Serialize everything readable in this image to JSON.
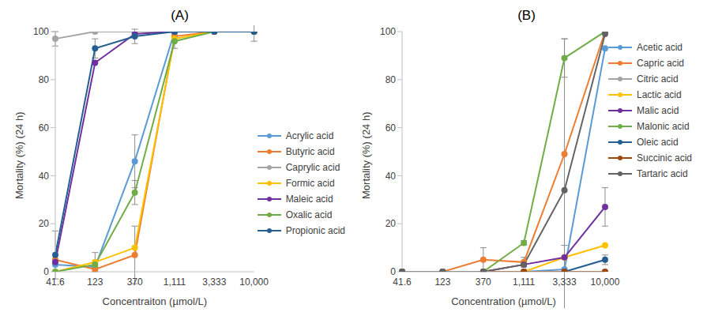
{
  "chart_data": [
    {
      "type": "line",
      "title": "(A)",
      "x_label": "Concentraiton (µmol/L)",
      "y_label": "Mortality (%) (24 h)",
      "categories": [
        "41.6",
        "123",
        "370",
        "1,111",
        "3,333",
        "10,000"
      ],
      "ylim": [
        0,
        100
      ],
      "yticks": [
        0,
        20,
        40,
        60,
        80,
        100
      ],
      "legend": "right",
      "marker": "circle",
      "series": [
        {
          "name": "Acrylic acid",
          "color": "#5B9BD5",
          "values": [
            3,
            2,
            46,
            100,
            100,
            100
          ],
          "errors": [
            null,
            null,
            11,
            null,
            null,
            null
          ]
        },
        {
          "name": "Butyric acid",
          "color": "#ED7D31",
          "values": [
            5,
            1,
            7,
            98,
            100,
            100
          ],
          "errors": [
            null,
            null,
            12,
            null,
            null,
            null
          ]
        },
        {
          "name": "Caprylic acid",
          "color": "#A5A5A5",
          "values": [
            97,
            100,
            100,
            100,
            100,
            100
          ],
          "errors": [
            3,
            null,
            null,
            null,
            null,
            null
          ]
        },
        {
          "name": "Formic acid",
          "color": "#FFC000",
          "values": [
            0,
            4,
            10,
            97,
            100,
            100
          ],
          "errors": [
            null,
            4,
            null,
            null,
            null,
            null
          ]
        },
        {
          "name": "Maleic acid",
          "color": "#7030A0",
          "values": [
            4,
            87,
            99,
            100,
            100,
            100
          ],
          "errors": [
            null,
            null,
            null,
            null,
            null,
            null
          ]
        },
        {
          "name": "Oxalic acid",
          "color": "#70AD47",
          "values": [
            0,
            3,
            33,
            96,
            100,
            100
          ],
          "errors": [
            null,
            null,
            5,
            3,
            null,
            null
          ]
        },
        {
          "name": "Propionic acid",
          "color": "#255E91",
          "values": [
            7,
            93,
            98,
            100,
            100,
            100
          ],
          "errors": [
            10,
            4,
            3,
            null,
            null,
            4
          ]
        }
      ]
    },
    {
      "type": "line",
      "title": "(B)",
      "x_label": "Concentration (µmol/L)",
      "y_label": "Mortality (%) (24 h)",
      "categories": [
        "41.6",
        "123",
        "370",
        "1,111",
        "3,333",
        "10,000"
      ],
      "ylim": [
        0,
        100
      ],
      "yticks": [
        0,
        20,
        40,
        60,
        80,
        100
      ],
      "legend": "upper right",
      "marker": "circle",
      "series": [
        {
          "name": "Acetic acid",
          "color": "#5B9BD5",
          "values": [
            0,
            0,
            0,
            0,
            1,
            93
          ],
          "errors": [
            null,
            null,
            null,
            null,
            null,
            null
          ]
        },
        {
          "name": "Capric acid",
          "color": "#ED7D31",
          "values": [
            0,
            0,
            5,
            4,
            49,
            100
          ],
          "errors": [
            null,
            null,
            5,
            2,
            null,
            null
          ]
        },
        {
          "name": "Citric acid",
          "color": "#A5A5A5",
          "values": [
            0,
            0,
            0,
            0,
            0,
            0
          ],
          "errors": [
            null,
            null,
            null,
            null,
            null,
            null
          ]
        },
        {
          "name": "Lactic acid",
          "color": "#FFC000",
          "values": [
            0,
            0,
            0,
            0,
            6,
            11
          ],
          "errors": [
            null,
            null,
            null,
            null,
            null,
            null
          ]
        },
        {
          "name": "Malic acid",
          "color": "#7030A0",
          "values": [
            0,
            0,
            0,
            3,
            6,
            27
          ],
          "errors": [
            null,
            null,
            null,
            null,
            5,
            8
          ]
        },
        {
          "name": "Malonic acid",
          "color": "#70AD47",
          "values": [
            0,
            0,
            0,
            12,
            89,
            100
          ],
          "errors": [
            null,
            null,
            null,
            1,
            8,
            null
          ]
        },
        {
          "name": "Oleic acid",
          "color": "#255E91",
          "values": [
            0,
            0,
            0,
            0,
            0,
            5
          ],
          "errors": [
            null,
            null,
            null,
            null,
            null,
            2
          ]
        },
        {
          "name": "Succinic acid",
          "color": "#9E480E",
          "values": [
            0,
            0,
            0,
            0,
            0,
            0
          ],
          "errors": [
            null,
            null,
            null,
            null,
            null,
            null
          ]
        },
        {
          "name": "Tartaric acid",
          "color": "#636363",
          "values": [
            0,
            0,
            0,
            3,
            34,
            99
          ],
          "errors": [
            null,
            null,
            null,
            null,
            63,
            null
          ]
        }
      ]
    }
  ]
}
